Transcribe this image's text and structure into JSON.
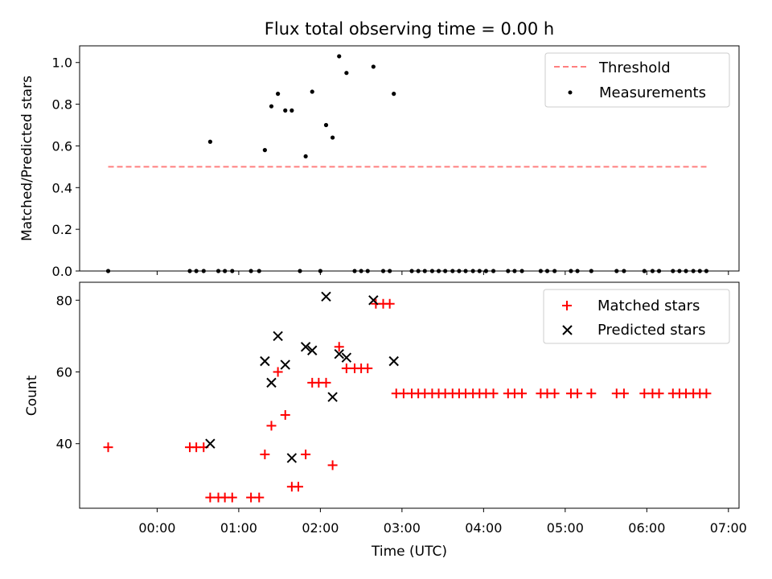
{
  "chart_data": [
    {
      "type": "scatter",
      "title": "Flux total observing time = 0.00 h",
      "xlabel": "",
      "ylabel": "Matched/Predicted stars",
      "ylim": [
        0,
        1.08
      ],
      "xlim_hours": [
        -0.95,
        7.13
      ],
      "yticks": [
        "0.0",
        "0.2",
        "0.4",
        "0.6",
        "0.8",
        "1.0"
      ],
      "ytick_values": [
        0,
        0.2,
        0.4,
        0.6,
        0.8,
        1.0
      ],
      "legend_position": "top-right",
      "colors": {
        "threshold": "#ff7f7f",
        "measurements": "#000000"
      },
      "threshold": {
        "name": "Threshold",
        "value": 0.5,
        "x_from": -0.6,
        "x_to": 6.75
      },
      "series": [
        {
          "name": "Measurements",
          "marker": "dot",
          "points": [
            [
              -0.6,
              0
            ],
            [
              0.4,
              0
            ],
            [
              0.48,
              0
            ],
            [
              0.57,
              0
            ],
            [
              0.75,
              0
            ],
            [
              0.83,
              0
            ],
            [
              0.92,
              0
            ],
            [
              1.15,
              0
            ],
            [
              1.25,
              0
            ],
            [
              1.75,
              0
            ],
            [
              2.0,
              0
            ],
            [
              2.42,
              0
            ],
            [
              2.5,
              0
            ],
            [
              2.58,
              0
            ],
            [
              2.77,
              0
            ],
            [
              2.85,
              0
            ],
            [
              3.12,
              0
            ],
            [
              3.2,
              0
            ],
            [
              3.28,
              0
            ],
            [
              3.37,
              0
            ],
            [
              3.45,
              0
            ],
            [
              3.53,
              0
            ],
            [
              3.62,
              0
            ],
            [
              3.7,
              0
            ],
            [
              3.78,
              0
            ],
            [
              3.87,
              0
            ],
            [
              3.95,
              0
            ],
            [
              4.03,
              0
            ],
            [
              4.12,
              0
            ],
            [
              4.3,
              0
            ],
            [
              4.38,
              0
            ],
            [
              4.47,
              0
            ],
            [
              4.7,
              0
            ],
            [
              4.78,
              0
            ],
            [
              4.87,
              0
            ],
            [
              5.07,
              0
            ],
            [
              5.15,
              0
            ],
            [
              5.32,
              0
            ],
            [
              5.63,
              0
            ],
            [
              5.72,
              0
            ],
            [
              5.97,
              0
            ],
            [
              6.07,
              0
            ],
            [
              6.15,
              0
            ],
            [
              6.32,
              0
            ],
            [
              6.4,
              0
            ],
            [
              6.48,
              0
            ],
            [
              6.57,
              0
            ],
            [
              6.65,
              0
            ],
            [
              6.73,
              0
            ],
            [
              0.65,
              0.62
            ],
            [
              1.32,
              0.58
            ],
            [
              1.4,
              0.79
            ],
            [
              1.48,
              0.85
            ],
            [
              1.57,
              0.77
            ],
            [
              1.65,
              0.77
            ],
            [
              1.82,
              0.55
            ],
            [
              1.9,
              0.86
            ],
            [
              2.07,
              0.7
            ],
            [
              2.15,
              0.64
            ],
            [
              2.23,
              1.03
            ],
            [
              2.32,
              0.95
            ],
            [
              2.65,
              0.98
            ],
            [
              2.9,
              0.85
            ]
          ]
        }
      ]
    },
    {
      "type": "scatter",
      "title": "",
      "xlabel": "Time (UTC)",
      "ylabel": "Count",
      "ylim": [
        22,
        85
      ],
      "xlim_hours": [
        -0.95,
        7.13
      ],
      "yticks": [
        "40",
        "60",
        "80"
      ],
      "ytick_values": [
        40,
        60,
        80
      ],
      "xtick_labels": [
        "00:00",
        "01:00",
        "02:00",
        "03:00",
        "04:00",
        "05:00",
        "06:00",
        "07:00"
      ],
      "xtick_values": [
        0,
        1,
        2,
        3,
        4,
        5,
        6,
        7
      ],
      "legend_position": "top-right",
      "colors": {
        "matched": "#ff0000",
        "predicted": "#000000"
      },
      "series": [
        {
          "name": "Matched stars",
          "marker": "plus",
          "points": [
            [
              -0.6,
              39
            ],
            [
              0.4,
              39
            ],
            [
              0.48,
              39
            ],
            [
              0.57,
              39
            ],
            [
              0.65,
              25
            ],
            [
              0.75,
              25
            ],
            [
              0.83,
              25
            ],
            [
              0.92,
              25
            ],
            [
              1.15,
              25
            ],
            [
              1.25,
              25
            ],
            [
              1.32,
              37
            ],
            [
              1.4,
              45
            ],
            [
              1.48,
              60
            ],
            [
              1.57,
              48
            ],
            [
              1.65,
              28
            ],
            [
              1.73,
              28
            ],
            [
              1.82,
              37
            ],
            [
              1.9,
              57
            ],
            [
              1.98,
              57
            ],
            [
              2.07,
              57
            ],
            [
              2.15,
              34
            ],
            [
              2.23,
              67
            ],
            [
              2.32,
              61
            ],
            [
              2.42,
              61
            ],
            [
              2.5,
              61
            ],
            [
              2.58,
              61
            ],
            [
              2.68,
              79
            ],
            [
              2.77,
              79
            ],
            [
              2.85,
              79
            ],
            [
              2.93,
              54
            ],
            [
              3.02,
              54
            ],
            [
              3.12,
              54
            ],
            [
              3.2,
              54
            ],
            [
              3.28,
              54
            ],
            [
              3.37,
              54
            ],
            [
              3.45,
              54
            ],
            [
              3.53,
              54
            ],
            [
              3.62,
              54
            ],
            [
              3.7,
              54
            ],
            [
              3.78,
              54
            ],
            [
              3.87,
              54
            ],
            [
              3.95,
              54
            ],
            [
              4.03,
              54
            ],
            [
              4.12,
              54
            ],
            [
              4.3,
              54
            ],
            [
              4.38,
              54
            ],
            [
              4.47,
              54
            ],
            [
              4.7,
              54
            ],
            [
              4.78,
              54
            ],
            [
              4.87,
              54
            ],
            [
              5.07,
              54
            ],
            [
              5.15,
              54
            ],
            [
              5.32,
              54
            ],
            [
              5.63,
              54
            ],
            [
              5.72,
              54
            ],
            [
              5.97,
              54
            ],
            [
              6.07,
              54
            ],
            [
              6.15,
              54
            ],
            [
              6.32,
              54
            ],
            [
              6.4,
              54
            ],
            [
              6.48,
              54
            ],
            [
              6.57,
              54
            ],
            [
              6.65,
              54
            ],
            [
              6.73,
              54
            ]
          ]
        },
        {
          "name": "Predicted stars",
          "marker": "x",
          "points": [
            [
              0.65,
              40
            ],
            [
              1.32,
              63
            ],
            [
              1.4,
              57
            ],
            [
              1.48,
              70
            ],
            [
              1.57,
              62
            ],
            [
              1.65,
              36
            ],
            [
              1.82,
              67
            ],
            [
              1.9,
              66
            ],
            [
              2.07,
              81
            ],
            [
              2.15,
              53
            ],
            [
              2.23,
              65
            ],
            [
              2.32,
              64
            ],
            [
              2.65,
              80
            ],
            [
              2.9,
              63
            ]
          ]
        }
      ]
    }
  ]
}
